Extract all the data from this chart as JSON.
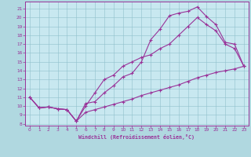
{
  "xlabel": "Windchill (Refroidissement éolien,°C)",
  "bg_color": "#b0d8e0",
  "plot_bg_color": "#c8e8f0",
  "grid_color": "#90c0cc",
  "line_color": "#993399",
  "spine_color": "#663366",
  "xlim": [
    -0.5,
    23.5
  ],
  "ylim": [
    7.8,
    21.8
  ],
  "xticks": [
    0,
    1,
    2,
    3,
    4,
    5,
    6,
    7,
    8,
    9,
    10,
    11,
    12,
    13,
    14,
    15,
    16,
    17,
    18,
    19,
    20,
    21,
    22,
    23
  ],
  "yticks": [
    8,
    9,
    10,
    11,
    12,
    13,
    14,
    15,
    16,
    17,
    18,
    19,
    20,
    21
  ],
  "line1_x": [
    0,
    1,
    2,
    3,
    4,
    5,
    6,
    7,
    8,
    9,
    10,
    11,
    12,
    13,
    14,
    15,
    16,
    17,
    18,
    19,
    20,
    21,
    22,
    23
  ],
  "line1_y": [
    11,
    9.8,
    9.9,
    9.7,
    9.6,
    8.3,
    10.3,
    10.5,
    11.5,
    12.3,
    13.3,
    13.7,
    15.0,
    17.5,
    18.7,
    20.2,
    20.5,
    20.7,
    21.2,
    20.1,
    19.2,
    17.2,
    17.0,
    14.5
  ],
  "line2_x": [
    0,
    1,
    2,
    3,
    4,
    5,
    6,
    7,
    8,
    9,
    10,
    11,
    12,
    13,
    14,
    15,
    16,
    17,
    18,
    19,
    20,
    21,
    22,
    23
  ],
  "line2_y": [
    11,
    9.8,
    9.9,
    9.7,
    9.6,
    8.3,
    10.0,
    11.5,
    13.0,
    13.5,
    14.5,
    15.0,
    15.5,
    15.8,
    16.5,
    17.0,
    18.0,
    19.0,
    20.0,
    19.2,
    18.5,
    17.0,
    16.5,
    14.5
  ],
  "line3_x": [
    0,
    1,
    2,
    3,
    4,
    5,
    6,
    7,
    8,
    9,
    10,
    11,
    12,
    13,
    14,
    15,
    16,
    17,
    18,
    19,
    20,
    21,
    22,
    23
  ],
  "line3_y": [
    11,
    9.8,
    9.9,
    9.7,
    9.6,
    8.3,
    9.3,
    9.6,
    9.9,
    10.2,
    10.5,
    10.8,
    11.2,
    11.5,
    11.8,
    12.1,
    12.4,
    12.8,
    13.2,
    13.5,
    13.8,
    14.0,
    14.2,
    14.5
  ]
}
